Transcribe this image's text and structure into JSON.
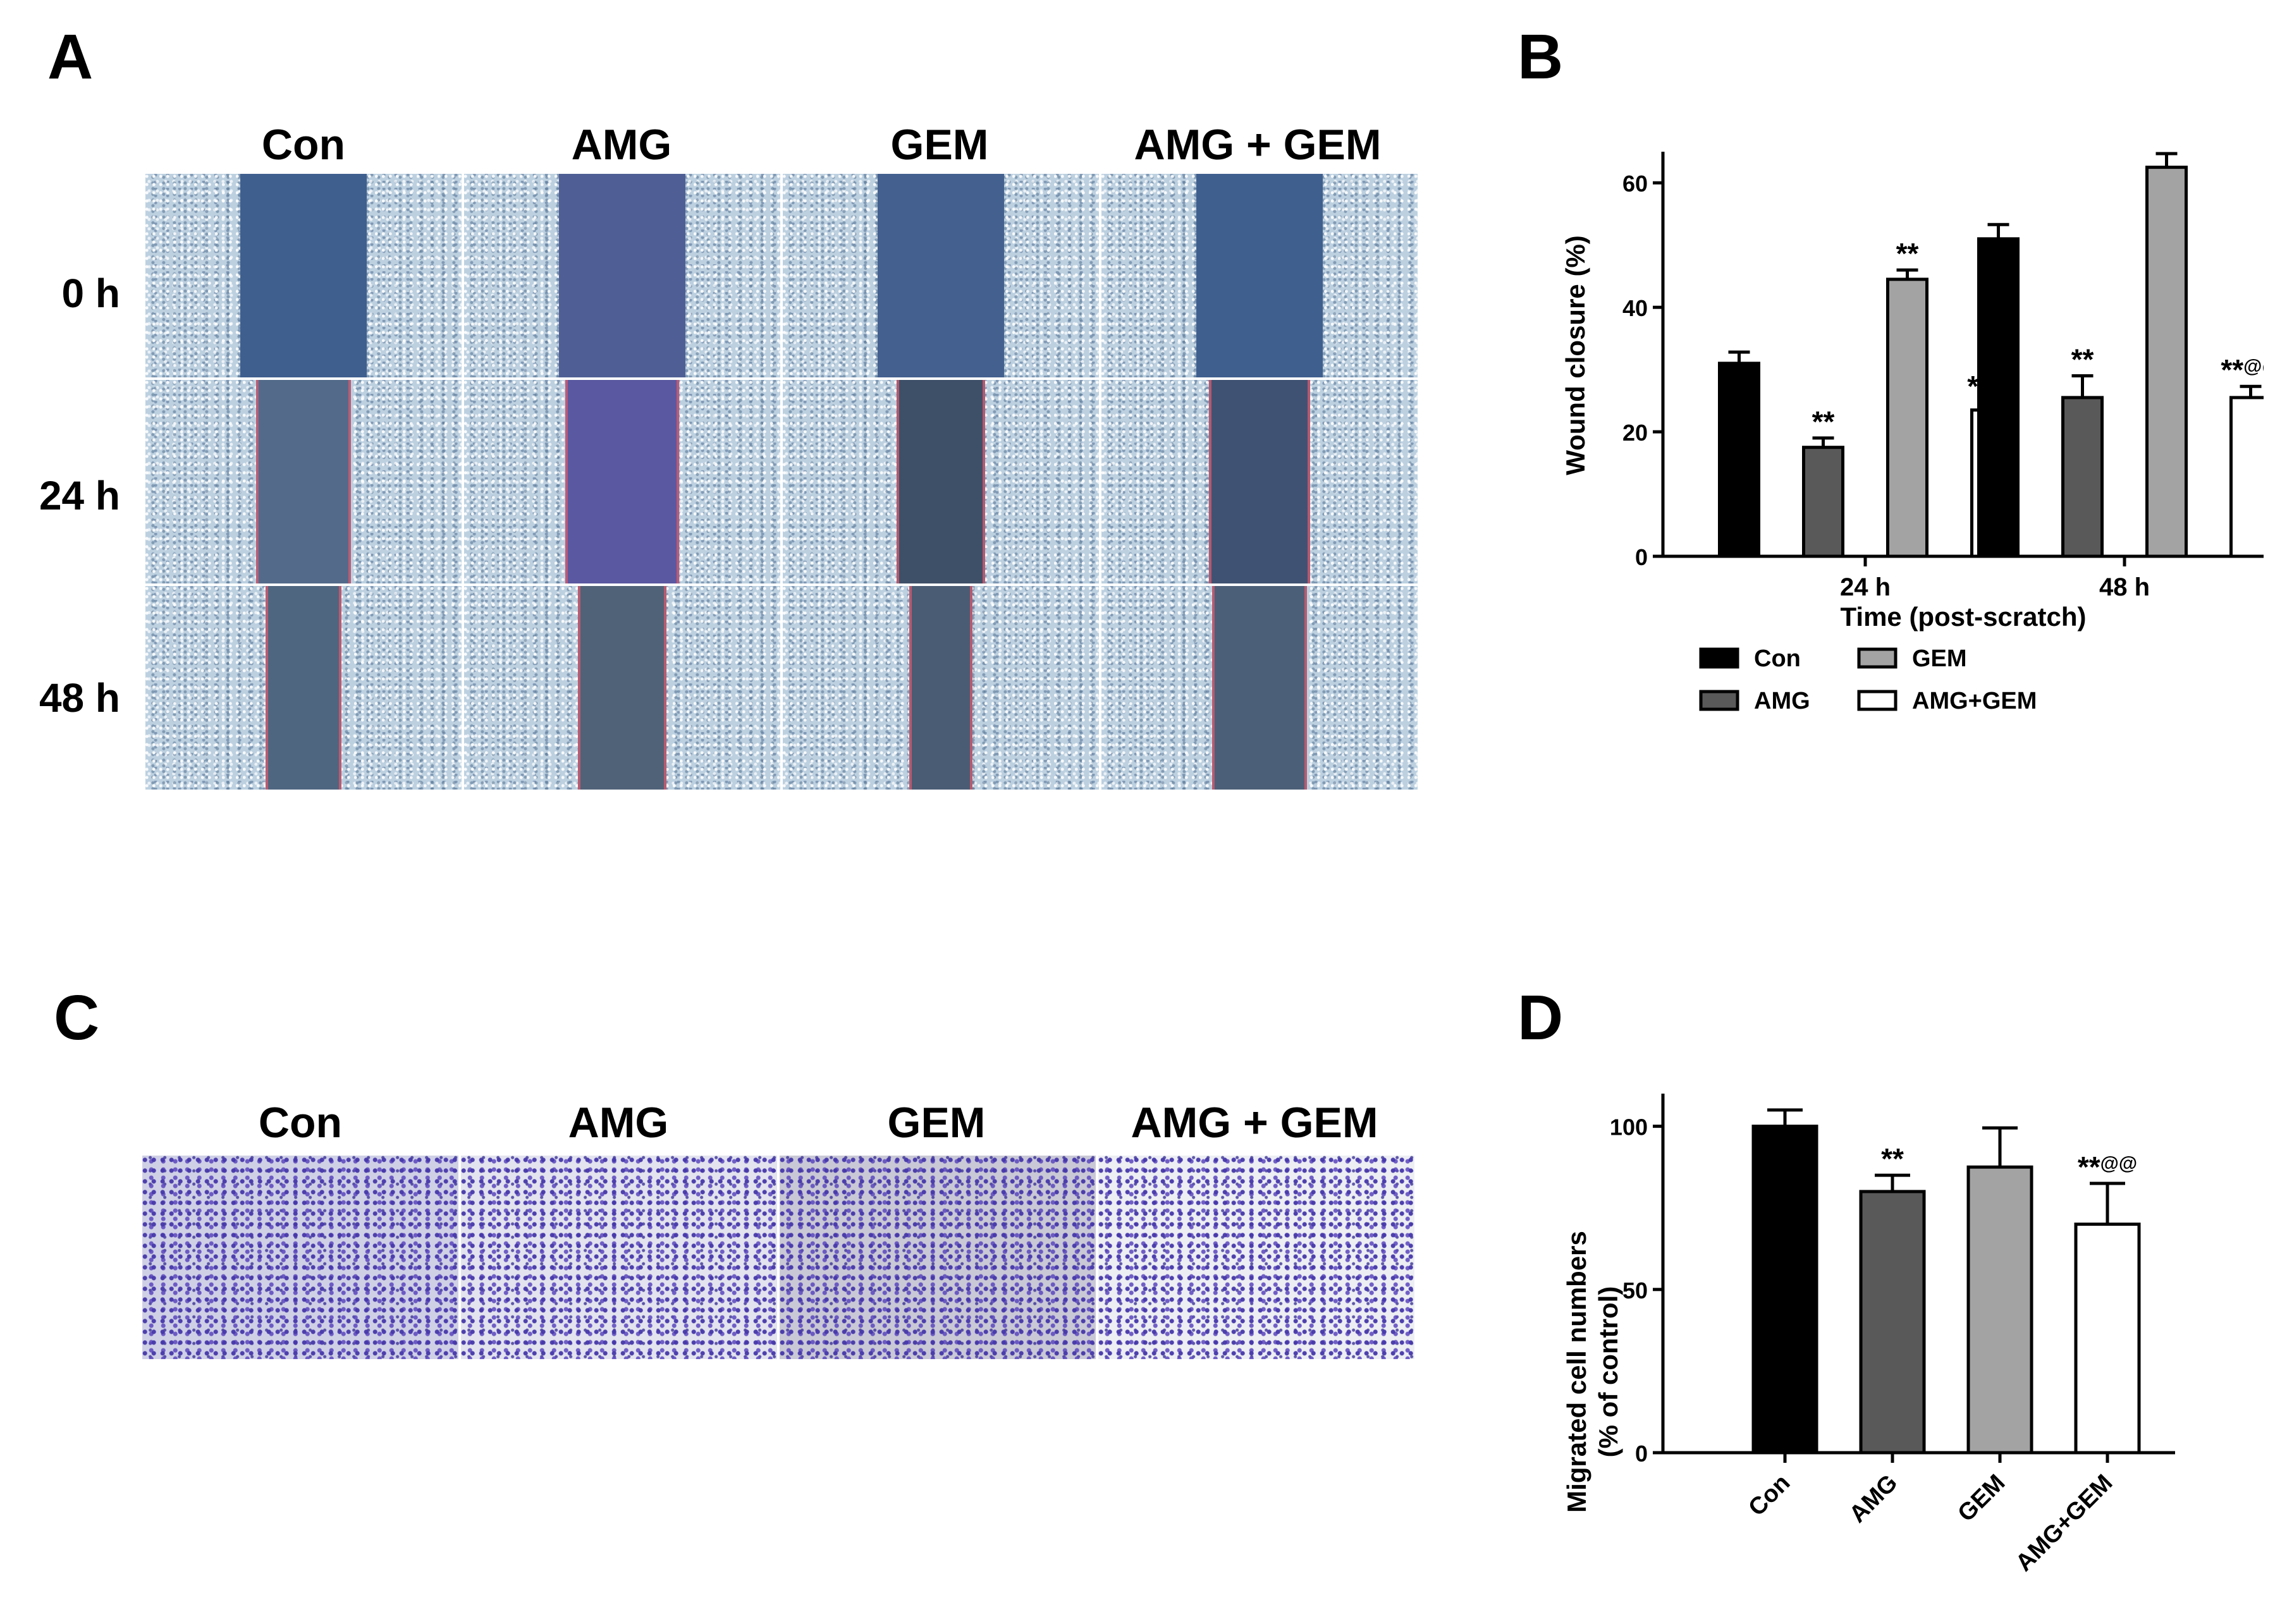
{
  "panels": {
    "a": {
      "letter": "A",
      "columns": [
        "Con",
        "AMG",
        "GEM",
        "AMG + GEM"
      ],
      "rows": [
        "0 h",
        "24 h",
        "48 h"
      ]
    },
    "c": {
      "letter": "C",
      "columns": [
        "Con",
        "AMG",
        "GEM",
        "AMG + GEM"
      ]
    }
  },
  "chart_data": [
    {
      "panel": "B",
      "type": "bar",
      "categories": [
        "24 h",
        "48 h"
      ],
      "series": [
        {
          "name": "Con",
          "values": [
            31,
            51
          ],
          "errors": [
            1.8,
            2.3
          ],
          "annotations": [
            "",
            ""
          ],
          "fill": "#000000"
        },
        {
          "name": "AMG",
          "values": [
            17.5,
            25.5
          ],
          "errors": [
            1.5,
            3.5
          ],
          "annotations": [
            "**",
            "**"
          ],
          "fill": "#595959"
        },
        {
          "name": "GEM",
          "values": [
            44.5,
            62.5
          ],
          "errors": [
            1.5,
            2.2
          ],
          "annotations": [
            "**",
            ""
          ],
          "fill": "#a3a3a3"
        },
        {
          "name": "AMG+GEM",
          "values": [
            23.5,
            25.5
          ],
          "errors": [
            1.2,
            1.8
          ],
          "annotations": [
            "*@@",
            "**@@"
          ],
          "fill": "#ffffff"
        }
      ],
      "xlabel": "Time (post-scratch)",
      "ylabel": "Wound closure (%)",
      "ylim": [
        0,
        65
      ],
      "yticks": [
        0,
        20,
        40,
        60
      ],
      "legend": "bottom"
    },
    {
      "panel": "D",
      "type": "bar",
      "categories": [
        "Con",
        "AMG",
        "GEM",
        "AMG+GEM"
      ],
      "values": [
        100,
        80,
        87.5,
        70
      ],
      "errors": [
        5,
        5,
        12,
        12.5
      ],
      "annotations": [
        "",
        "**",
        "",
        "**@@"
      ],
      "fills": [
        "#000000",
        "#595959",
        "#a3a3a3",
        "#ffffff"
      ],
      "xlabel": "",
      "ylabel": "Migrated cell numbers (% of control)",
      "ylabel_lines": [
        "Migrated cell numbers",
        "(% of control)"
      ],
      "ylim": [
        0,
        110
      ],
      "yticks": [
        0,
        50,
        100
      ]
    }
  ]
}
